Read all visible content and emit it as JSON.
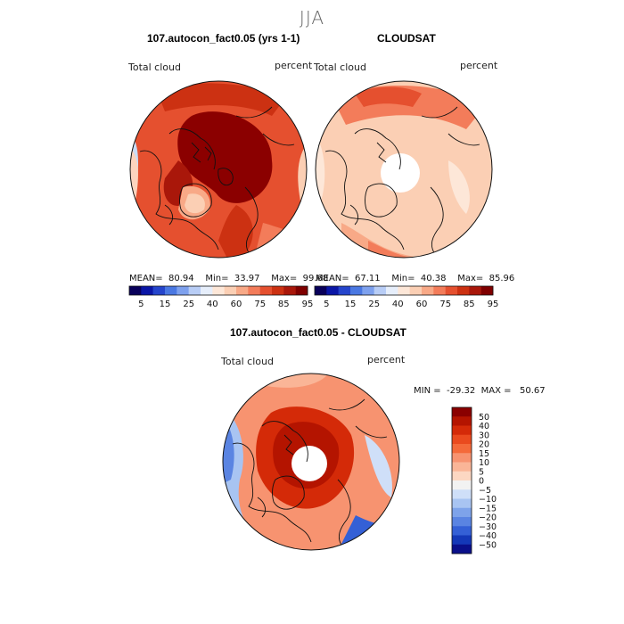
{
  "season": "JJA",
  "panels": [
    {
      "title": "107.autocon_fact0.05 (yrs 1-1)",
      "variable": "Total cloud",
      "units": "percent",
      "stats": {
        "mean_label": "MEAN=",
        "mean": "80.94",
        "min_label": "Min=",
        "min": "33.97",
        "max_label": "Max=",
        "max": "99.68"
      }
    },
    {
      "title": "CLOUDSAT",
      "variable": "Total cloud",
      "units": "percent",
      "stats": {
        "mean_label": "MEAN=",
        "mean": "67.11",
        "min_label": "Min=",
        "min": "40.38",
        "max_label": "Max=",
        "max": "85.96"
      }
    }
  ],
  "abs_colorbar": {
    "tick_labels": [
      "5",
      "15",
      "25",
      "40",
      "60",
      "75",
      "85",
      "95"
    ],
    "colors": [
      "#08005a",
      "#0a16a6",
      "#2545cc",
      "#4a78e2",
      "#7ea1ee",
      "#b8cdf6",
      "#e6eefb",
      "#fde7d8",
      "#fbcfb4",
      "#f8a987",
      "#f37c5a",
      "#e5502f",
      "#cc3112",
      "#a9170a",
      "#7f0000"
    ]
  },
  "diff_panel": {
    "title": "107.autocon_fact0.05 - CLOUDSAT",
    "variable": "Total cloud",
    "units": "percent",
    "minmax": {
      "min_label": "MIN =",
      "min": "-29.32",
      "max_label": "MAX =",
      "max": "50.67"
    },
    "colorbar": {
      "tick_labels": [
        "50",
        "40",
        "30",
        "20",
        "15",
        "10",
        "5",
        "0",
        "−5",
        "−10",
        "−15",
        "−20",
        "−30",
        "−40",
        "−50"
      ],
      "colors": [
        "#8a0000",
        "#b41400",
        "#d42a08",
        "#ea4a1e",
        "#f46a3a",
        "#f79370",
        "#fab597",
        "#fcd7c2",
        "#f2f2f2",
        "#cfdff8",
        "#a8c4f2",
        "#7ea3ea",
        "#5a84e2",
        "#3460d6",
        "#1438b8",
        "#0a0f8a"
      ]
    }
  },
  "palette": {
    "dark_red": "#8b0000",
    "red": "#d62d10",
    "orange_red": "#ee5f32",
    "salmon": "#f8a584",
    "light_salmon": "#fcd4be",
    "pale": "#fdebe0",
    "light_blue": "#c9dcf6",
    "blue": "#6d95e6",
    "coast": "#111111"
  }
}
